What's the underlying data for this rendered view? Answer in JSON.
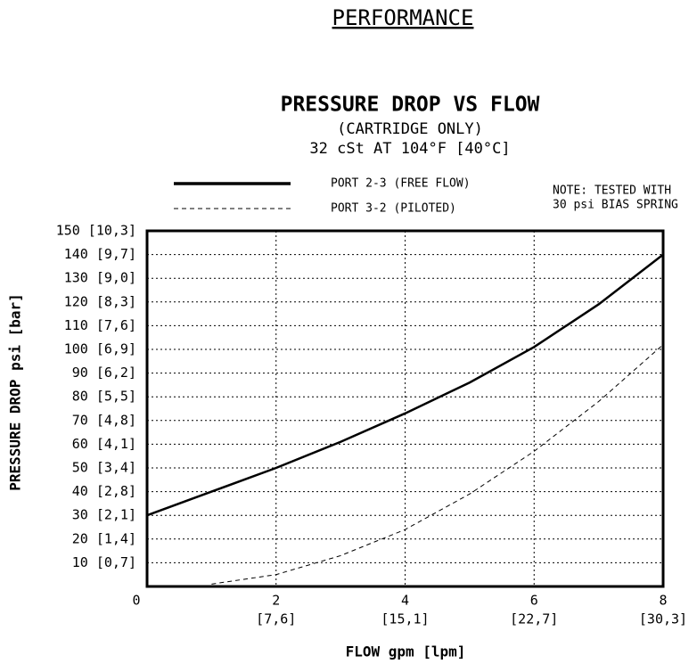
{
  "header": {
    "title": "PERFORMANCE"
  },
  "chart_data": {
    "type": "line",
    "title": "PRESSURE DROP VS FLOW",
    "subtitle": [
      "(CARTRIDGE ONLY)",
      "32 cSt AT 104°F [40°C]"
    ],
    "note": [
      "NOTE: TESTED WITH",
      "30 psi BIAS SPRING"
    ],
    "x_label": "FLOW gpm [lpm]",
    "y_label": "PRESSURE DROP psi [bar]",
    "x": [
      0,
      1,
      2,
      3,
      4,
      5,
      6,
      7,
      8
    ],
    "series": [
      {
        "name": "PORT 2-3 (FREE FLOW)",
        "color": "#000000",
        "style": "solid",
        "values": [
          30,
          40,
          50,
          61,
          73,
          86,
          101,
          119,
          140
        ]
      },
      {
        "name": "PORT 3-2 (PILOTED)",
        "color": "#000000",
        "style": "dashed",
        "values": [
          null,
          1,
          5,
          13,
          24,
          39,
          57,
          78,
          102
        ]
      }
    ],
    "xlim": [
      0,
      8
    ],
    "xticks": [
      0,
      2,
      4,
      6,
      8
    ],
    "xtick_secondary": [
      null,
      "[7,6]",
      "[15,1]",
      "[22,7]",
      "[30,3]"
    ],
    "ylim": [
      0,
      150
    ],
    "yticks": [
      {
        "value": 10,
        "label": "10 [0,7]"
      },
      {
        "value": 20,
        "label": "20 [1,4]"
      },
      {
        "value": 30,
        "label": "30 [2,1]"
      },
      {
        "value": 40,
        "label": "40 [2,8]"
      },
      {
        "value": 50,
        "label": "50 [3,4]"
      },
      {
        "value": 60,
        "label": "60 [4,1]"
      },
      {
        "value": 70,
        "label": "70 [4,8]"
      },
      {
        "value": 80,
        "label": "80 [5,5]"
      },
      {
        "value": 90,
        "label": "90 [6,2]"
      },
      {
        "value": 100,
        "label": "100 [6,9]"
      },
      {
        "value": 110,
        "label": "110 [7,6]"
      },
      {
        "value": 120,
        "label": "120 [8,3]"
      },
      {
        "value": 130,
        "label": "130 [9,0]"
      },
      {
        "value": 140,
        "label": "140 [9,7]"
      },
      {
        "value": 150,
        "label": "150 [10,3]"
      }
    ],
    "grid": true
  }
}
